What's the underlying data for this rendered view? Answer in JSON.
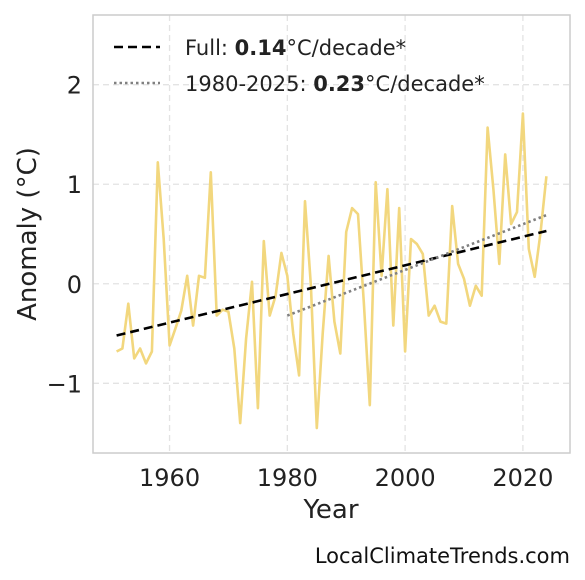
{
  "chart_data": {
    "type": "line",
    "title": "",
    "xlabel": "Year",
    "ylabel": "Anomaly (°C)",
    "xlim": [
      1947,
      2028
    ],
    "ylim": [
      -1.7,
      2.7
    ],
    "xticks": [
      1960,
      1980,
      2000,
      2020
    ],
    "yticks": [
      -1,
      0,
      1,
      2
    ],
    "ytick_labels": [
      "−1",
      "0",
      "1",
      "2"
    ],
    "grid": true,
    "legend_position": "top-left",
    "series": [
      {
        "style": "solid",
        "color": "#f2d77e",
        "x": [
          1951,
          1952,
          1953,
          1954,
          1955,
          1956,
          1957,
          1958,
          1959,
          1960,
          1961,
          1962,
          1963,
          1964,
          1965,
          1966,
          1967,
          1968,
          1969,
          1970,
          1971,
          1972,
          1973,
          1974,
          1975,
          1976,
          1977,
          1978,
          1979,
          1980,
          1981,
          1982,
          1983,
          1984,
          1985,
          1986,
          1987,
          1988,
          1989,
          1990,
          1991,
          1992,
          1993,
          1994,
          1995,
          1996,
          1997,
          1998,
          1999,
          2000,
          2001,
          2002,
          2003,
          2004,
          2005,
          2006,
          2007,
          2008,
          2009,
          2010,
          2011,
          2012,
          2013,
          2014,
          2015,
          2016,
          2017,
          2018,
          2019,
          2020,
          2021,
          2022,
          2023,
          2024
        ],
        "y": [
          -0.68,
          -0.65,
          -0.2,
          -0.75,
          -0.65,
          -0.8,
          -0.68,
          1.22,
          0.45,
          -0.62,
          -0.45,
          -0.27,
          0.08,
          -0.42,
          0.08,
          0.06,
          1.12,
          -0.32,
          -0.26,
          -0.28,
          -0.65,
          -1.4,
          -0.55,
          0.02,
          -1.25,
          0.43,
          -0.32,
          -0.12,
          0.31,
          0.08,
          -0.5,
          -0.92,
          0.83,
          -0.02,
          -1.45,
          -0.5,
          0.28,
          -0.38,
          -0.7,
          0.52,
          0.76,
          0.7,
          -0.2,
          -1.22,
          1.02,
          0.08,
          0.95,
          -0.42,
          0.76,
          -0.68,
          0.45,
          0.4,
          0.3,
          -0.32,
          -0.22,
          -0.38,
          -0.4,
          0.78,
          0.2,
          0.05,
          -0.22,
          -0.02,
          -0.12,
          1.57,
          0.95,
          0.2,
          1.3,
          0.6,
          0.72,
          1.71,
          0.35,
          0.07,
          0.52,
          1.08
        ]
      },
      {
        "style": "dashed",
        "color": "#000000",
        "x": [
          1951,
          2024
        ],
        "y": [
          -0.52,
          0.53
        ]
      },
      {
        "style": "dotted",
        "color": "#808080",
        "x": [
          1980,
          2024
        ],
        "y": [
          -0.32,
          0.69
        ]
      }
    ],
    "legend": [
      {
        "prefix": "Full: ",
        "value": "0.14",
        "suffix": "°C/decade*"
      },
      {
        "prefix": "1980-2025: ",
        "value": "0.23",
        "suffix": "°C/decade*"
      }
    ]
  },
  "colors": {
    "anomaly_line": "#f2d77e",
    "trend_full": "#000000",
    "trend_recent": "#808080",
    "grid": "#e3e3e3",
    "frame": "#cccccc"
  },
  "footer": {
    "credit": "LocalClimateTrends.com"
  }
}
